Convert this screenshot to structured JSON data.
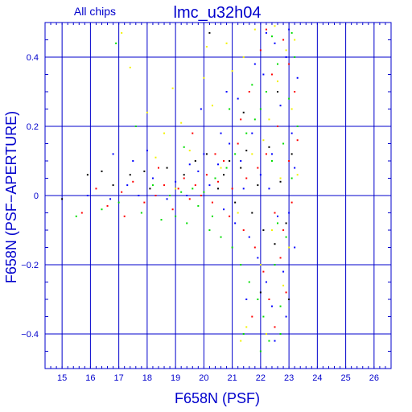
{
  "chart_data": {
    "type": "scatter",
    "title": "lmc_u32h04",
    "subtitle": "All chips",
    "xlabel": "F658N (PSF)",
    "ylabel": "F658N (PSF−APERTURE)",
    "xlim": [
      14.4,
      26.6
    ],
    "ylim": [
      -0.5,
      0.5
    ],
    "xticks": [
      15,
      16,
      17,
      18,
      19,
      20,
      21,
      22,
      23,
      24,
      25,
      26
    ],
    "yticks": [
      -0.4,
      -0.2,
      0,
      0.2,
      0.4
    ],
    "ytick_labels": [
      "−0.4",
      "−0.2",
      "0",
      "0.2",
      "0.4"
    ],
    "grid": true,
    "series": [
      {
        "color": "#ff0000",
        "points": [
          [
            15.7,
            -0.05
          ],
          [
            16.2,
            0.02
          ],
          [
            16.6,
            -0.03
          ],
          [
            17.1,
            0.01
          ],
          [
            17.5,
            0.04
          ],
          [
            17.9,
            -0.02
          ],
          [
            18.3,
            0.0
          ],
          [
            18.6,
            0.03
          ],
          [
            18.9,
            -0.04
          ],
          [
            19.1,
            0.02
          ],
          [
            19.3,
            0.05
          ],
          [
            19.5,
            -0.01
          ],
          [
            19.7,
            0.03
          ],
          [
            19.9,
            0.0
          ],
          [
            20.1,
            0.06
          ],
          [
            20.3,
            -0.02
          ],
          [
            20.5,
            0.04
          ],
          [
            20.7,
            0.1
          ],
          [
            20.9,
            -0.06
          ],
          [
            21.0,
            0.02
          ],
          [
            21.2,
            0.15
          ],
          [
            21.4,
            -0.1
          ],
          [
            21.5,
            0.05
          ],
          [
            21.6,
            0.3
          ],
          [
            21.8,
            -0.15
          ],
          [
            21.9,
            0.08
          ],
          [
            22.0,
            0.42
          ],
          [
            22.1,
            -0.22
          ],
          [
            22.2,
            0.12
          ],
          [
            22.3,
            -0.3
          ],
          [
            22.4,
            0.35
          ],
          [
            22.5,
            -0.05
          ],
          [
            22.6,
            0.2
          ],
          [
            22.7,
            -0.18
          ],
          [
            22.8,
            0.45
          ],
          [
            22.9,
            -0.28
          ],
          [
            23.0,
            0.1
          ],
          [
            23.1,
            -0.02
          ],
          [
            23.2,
            0.3
          ],
          [
            23.3,
            0.16
          ],
          [
            22.2,
            0.48
          ],
          [
            21.7,
            -0.35
          ],
          [
            22.5,
            -0.38
          ],
          [
            23.0,
            0.38
          ],
          [
            21.3,
            0.22
          ],
          [
            20.4,
            0.12
          ],
          [
            19.6,
            0.18
          ],
          [
            18.4,
            0.08
          ],
          [
            17.2,
            -0.06
          ],
          [
            22.8,
            -0.1
          ]
        ]
      },
      {
        "color": "#00dd00",
        "points": [
          [
            15.5,
            -0.06
          ],
          [
            16.4,
            -0.04
          ],
          [
            17.0,
            -0.02
          ],
          [
            17.8,
            -0.05
          ],
          [
            18.5,
            -0.07
          ],
          [
            18.8,
            0.0
          ],
          [
            19.0,
            -0.06
          ],
          [
            19.2,
            0.01
          ],
          [
            19.4,
            -0.08
          ],
          [
            19.6,
            0.02
          ],
          [
            19.8,
            -0.03
          ],
          [
            20.0,
            0.01
          ],
          [
            20.2,
            -0.1
          ],
          [
            20.4,
            0.05
          ],
          [
            20.6,
            -0.12
          ],
          [
            20.8,
            0.08
          ],
          [
            21.0,
            -0.15
          ],
          [
            21.1,
            0.12
          ],
          [
            21.3,
            -0.2
          ],
          [
            21.5,
            0.18
          ],
          [
            21.6,
            -0.25
          ],
          [
            21.8,
            0.22
          ],
          [
            21.9,
            -0.3
          ],
          [
            22.0,
            0.25
          ],
          [
            22.1,
            -0.35
          ],
          [
            22.2,
            0.3
          ],
          [
            22.3,
            -0.42
          ],
          [
            22.4,
            0.1
          ],
          [
            22.5,
            -0.2
          ],
          [
            22.6,
            0.38
          ],
          [
            22.7,
            -0.32
          ],
          [
            22.8,
            0.15
          ],
          [
            22.9,
            -0.12
          ],
          [
            23.0,
            0.28
          ],
          [
            23.1,
            0.05
          ],
          [
            23.2,
            0.4
          ],
          [
            23.3,
            0.2
          ],
          [
            21.4,
            -0.4
          ],
          [
            22.0,
            -0.45
          ],
          [
            22.4,
            0.46
          ],
          [
            20.9,
            0.25
          ],
          [
            19.3,
            0.14
          ],
          [
            17.6,
            0.2
          ],
          [
            23.1,
            0.47
          ],
          [
            22.7,
            -0.4
          ],
          [
            21.7,
            0.32
          ],
          [
            20.3,
            -0.06
          ],
          [
            18.2,
            0.03
          ],
          [
            16.9,
            0.44
          ],
          [
            22.6,
            -0.08
          ]
        ]
      },
      {
        "color": "#0000ff",
        "points": [
          [
            15.9,
            0.0
          ],
          [
            16.7,
            -0.01
          ],
          [
            17.3,
            0.03
          ],
          [
            17.7,
            0.0
          ],
          [
            18.2,
            0.05
          ],
          [
            18.7,
            -0.01
          ],
          [
            19.0,
            0.04
          ],
          [
            19.4,
            0.0
          ],
          [
            19.8,
            0.07
          ],
          [
            20.0,
            0.12
          ],
          [
            20.2,
            0.03
          ],
          [
            20.5,
            0.09
          ],
          [
            20.7,
            -0.04
          ],
          [
            20.9,
            0.15
          ],
          [
            21.1,
            -0.08
          ],
          [
            21.2,
            0.28
          ],
          [
            21.4,
            0.02
          ],
          [
            21.6,
            -0.12
          ],
          [
            21.7,
            0.18
          ],
          [
            21.9,
            -0.18
          ],
          [
            22.0,
            0.06
          ],
          [
            22.1,
            0.35
          ],
          [
            22.2,
            -0.25
          ],
          [
            22.3,
            0.02
          ],
          [
            22.4,
            -0.32
          ],
          [
            22.5,
            0.44
          ],
          [
            22.6,
            -0.06
          ],
          [
            22.7,
            0.26
          ],
          [
            22.8,
            -0.22
          ],
          [
            22.9,
            0.4
          ],
          [
            23.0,
            -0.05
          ],
          [
            23.1,
            0.18
          ],
          [
            23.2,
            0.08
          ],
          [
            23.3,
            0.34
          ],
          [
            21.8,
            0.38
          ],
          [
            22.5,
            -0.42
          ],
          [
            20.6,
            0.18
          ],
          [
            19.9,
            0.25
          ],
          [
            18.0,
            0.13
          ],
          [
            16.8,
            0.12
          ],
          [
            22.2,
            0.47
          ],
          [
            23.0,
            0.48
          ],
          [
            21.5,
            -0.3
          ],
          [
            22.9,
            -0.35
          ],
          [
            20.8,
            0.3
          ],
          [
            19.5,
            0.09
          ],
          [
            17.5,
            0.1
          ],
          [
            22.4,
            0.12
          ],
          [
            21.3,
            0.1
          ],
          [
            23.2,
            -0.15
          ]
        ]
      },
      {
        "color": "#f2f200",
        "points": [
          [
            17.1,
            0.47
          ],
          [
            17.4,
            0.37
          ],
          [
            18.0,
            0.24
          ],
          [
            18.3,
            0.11
          ],
          [
            18.9,
            0.31
          ],
          [
            19.2,
            0.21
          ],
          [
            19.5,
            0.13
          ],
          [
            20.0,
            0.34
          ],
          [
            20.3,
            0.26
          ],
          [
            20.6,
            0.08
          ],
          [
            20.8,
            0.44
          ],
          [
            21.0,
            0.36
          ],
          [
            21.2,
            -0.05
          ],
          [
            21.4,
            0.4
          ],
          [
            21.5,
            -0.38
          ],
          [
            21.7,
            0.12
          ],
          [
            21.8,
            0.48
          ],
          [
            22.0,
            -0.2
          ],
          [
            22.1,
            0.16
          ],
          [
            22.2,
            -0.4
          ],
          [
            22.3,
            0.22
          ],
          [
            22.4,
            -0.1
          ],
          [
            22.6,
            0.33
          ],
          [
            22.7,
            0.05
          ],
          [
            22.8,
            -0.26
          ],
          [
            22.9,
            0.42
          ],
          [
            23.0,
            -0.15
          ],
          [
            23.1,
            0.25
          ],
          [
            23.2,
            0.45
          ],
          [
            23.3,
            0.06
          ],
          [
            21.3,
            -0.42
          ],
          [
            22.5,
            0.49
          ],
          [
            20.1,
            0.43
          ],
          [
            19.0,
            0.02
          ],
          [
            18.6,
            0.18
          ]
        ]
      },
      {
        "color": "#000000",
        "points": [
          [
            15.0,
            -0.01
          ],
          [
            15.9,
            0.06
          ],
          [
            16.4,
            0.07
          ],
          [
            16.8,
            0.03
          ],
          [
            17.4,
            0.06
          ],
          [
            17.9,
            0.07
          ],
          [
            18.1,
            0.02
          ],
          [
            18.7,
            0.08
          ],
          [
            19.3,
            0.06
          ],
          [
            19.7,
            0.1
          ],
          [
            20.1,
            0.12
          ],
          [
            20.2,
            0.47
          ],
          [
            20.5,
            0.02
          ],
          [
            20.7,
            0.06
          ],
          [
            20.9,
            0.1
          ],
          [
            21.1,
            -0.02
          ],
          [
            21.3,
            0.08
          ],
          [
            21.5,
            0.13
          ],
          [
            21.7,
            -0.05
          ],
          [
            21.9,
            0.03
          ],
          [
            22.1,
            -0.1
          ],
          [
            22.3,
            0.14
          ],
          [
            22.5,
            -0.14
          ],
          [
            22.7,
            0.04
          ],
          [
            22.9,
            -0.08
          ],
          [
            23.1,
            0.12
          ],
          [
            22.0,
            -0.28
          ],
          [
            22.6,
            0.3
          ],
          [
            21.4,
            0.24
          ],
          [
            23.0,
            -0.3
          ]
        ]
      }
    ]
  }
}
